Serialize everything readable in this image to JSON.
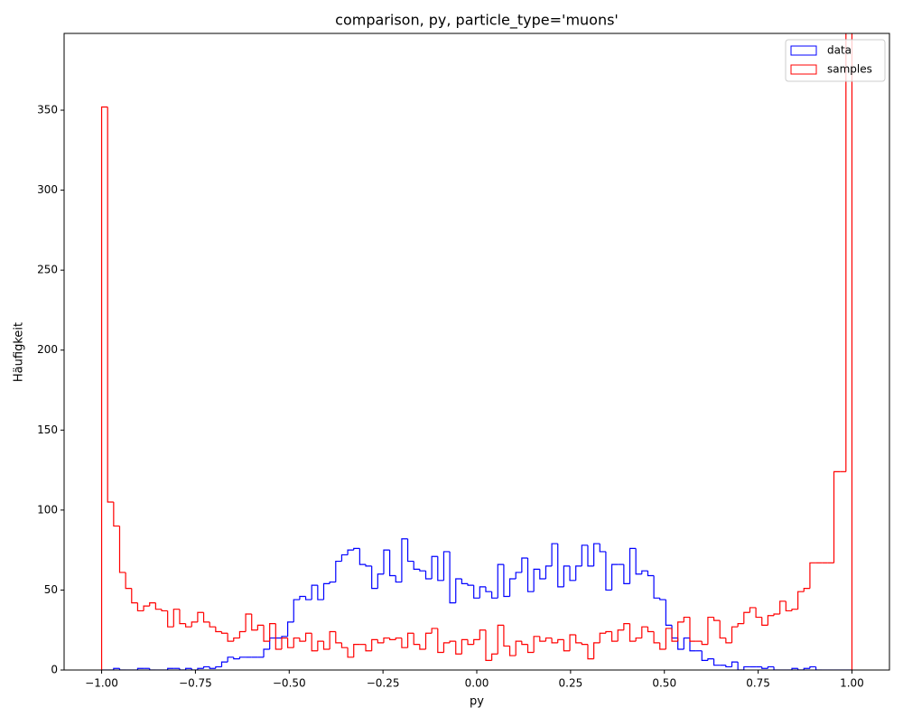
{
  "chart_data": {
    "type": "histogram",
    "histtype": "step",
    "title": "comparison, py, particle_type='muons'",
    "x_label": "py",
    "y_label": "Häufigkeit",
    "bins": [
      -1,
      -0.984,
      -0.968,
      -0.952,
      -0.936,
      -0.92,
      -0.904,
      -0.888,
      -0.872,
      -0.856,
      -0.84,
      -0.824,
      -0.808,
      -0.792,
      -0.776,
      -0.76,
      -0.744,
      -0.728,
      -0.712,
      -0.696,
      -0.68,
      -0.664,
      -0.648,
      -0.632,
      -0.616,
      -0.6,
      -0.584,
      -0.568,
      -0.552,
      -0.536,
      -0.52,
      -0.504,
      -0.488,
      -0.472,
      -0.456,
      -0.44,
      -0.424,
      -0.408,
      -0.392,
      -0.376,
      -0.36,
      -0.344,
      -0.328,
      -0.312,
      -0.296,
      -0.28,
      -0.264,
      -0.248,
      -0.232,
      -0.216,
      -0.2,
      -0.184,
      -0.168,
      -0.152,
      -0.136,
      -0.12,
      -0.104,
      -0.088,
      -0.072,
      -0.056,
      -0.04,
      -0.024,
      -0.008,
      0.008,
      0.024,
      0.04,
      0.056,
      0.072,
      0.088,
      0.104,
      0.12,
      0.136,
      0.152,
      0.168,
      0.184,
      0.2,
      0.216,
      0.232,
      0.248,
      0.264,
      0.28,
      0.296,
      0.312,
      0.328,
      0.344,
      0.36,
      0.376,
      0.392,
      0.408,
      0.424,
      0.44,
      0.456,
      0.472,
      0.488,
      0.504,
      0.52,
      0.536,
      0.552,
      0.568,
      0.584,
      0.6,
      0.616,
      0.632,
      0.648,
      0.664,
      0.68,
      0.696,
      0.712,
      0.728,
      0.744,
      0.76,
      0.776,
      0.792,
      0.808,
      0.824,
      0.84,
      0.856,
      0.872,
      0.888,
      0.904,
      0.92,
      0.936,
      0.952,
      0.968,
      0.984,
      1
    ],
    "series": [
      {
        "name": "data",
        "color": "#0000ff",
        "values": [
          0,
          0,
          1,
          0,
          0,
          0,
          1,
          1,
          0,
          0,
          0,
          1,
          1,
          0,
          1,
          0,
          1,
          2,
          1,
          2,
          5,
          8,
          7,
          8,
          8,
          8,
          8,
          13,
          20,
          20,
          21,
          30,
          44,
          46,
          44,
          53,
          44,
          54,
          55,
          68,
          72,
          75,
          76,
          66,
          65,
          51,
          60,
          75,
          59,
          55,
          82,
          68,
          63,
          62,
          57,
          71,
          56,
          74,
          42,
          57,
          54,
          53,
          45,
          52,
          49,
          45,
          66,
          46,
          57,
          61,
          70,
          49,
          63,
          57,
          65,
          79,
          52,
          65,
          56,
          65,
          78,
          65,
          79,
          74,
          50,
          66,
          66,
          54,
          76,
          60,
          62,
          59,
          45,
          44,
          28,
          20,
          13,
          20,
          12,
          12,
          6,
          7,
          3,
          3,
          2,
          5,
          0,
          2,
          2,
          2,
          1,
          2,
          0,
          0,
          0,
          1,
          0,
          1,
          2,
          0,
          0,
          0,
          0,
          0,
          0
        ]
      },
      {
        "name": "samples",
        "color": "#ff0000",
        "values": [
          352,
          105,
          90,
          61,
          51,
          42,
          37,
          40,
          42,
          38,
          37,
          27,
          38,
          29,
          27,
          30,
          36,
          30,
          27,
          24,
          23,
          18,
          20,
          24,
          35,
          25,
          28,
          18,
          29,
          13,
          20,
          14,
          20,
          18,
          23,
          12,
          18,
          13,
          24,
          17,
          14,
          8,
          16,
          16,
          12,
          19,
          17,
          20,
          19,
          20,
          14,
          23,
          16,
          13,
          23,
          26,
          11,
          17,
          18,
          10,
          19,
          16,
          19,
          25,
          6,
          10,
          28,
          15,
          9,
          18,
          16,
          11,
          21,
          18,
          20,
          17,
          19,
          12,
          22,
          17,
          16,
          7,
          17,
          23,
          24,
          18,
          25,
          29,
          18,
          20,
          27,
          24,
          17,
          13,
          26,
          18,
          30,
          33,
          18,
          18,
          16,
          33,
          31,
          20,
          17,
          27,
          29,
          36,
          39,
          33,
          28,
          34,
          35,
          43,
          37,
          38,
          49,
          51,
          67,
          67,
          67,
          67,
          124,
          124,
          420
        ]
      }
    ],
    "xlim": [
      -1.1,
      1.1
    ],
    "xticks": [
      {
        "value": -1,
        "label": "−1.00"
      },
      {
        "value": -0.75,
        "label": "−0.75"
      },
      {
        "value": -0.5,
        "label": "−0.50"
      },
      {
        "value": -0.25,
        "label": "−0.25"
      },
      {
        "value": 0,
        "label": "0.00"
      },
      {
        "value": 0.25,
        "label": "0.25"
      },
      {
        "value": 0.5,
        "label": "0.50"
      },
      {
        "value": 0.75,
        "label": "0.75"
      },
      {
        "value": 1,
        "label": "1.00"
      }
    ],
    "ylim": [
      0,
      398
    ],
    "yticks": [
      0,
      50,
      100,
      150,
      200,
      250,
      300,
      350
    ],
    "legend": "upper right",
    "grid": false
  }
}
